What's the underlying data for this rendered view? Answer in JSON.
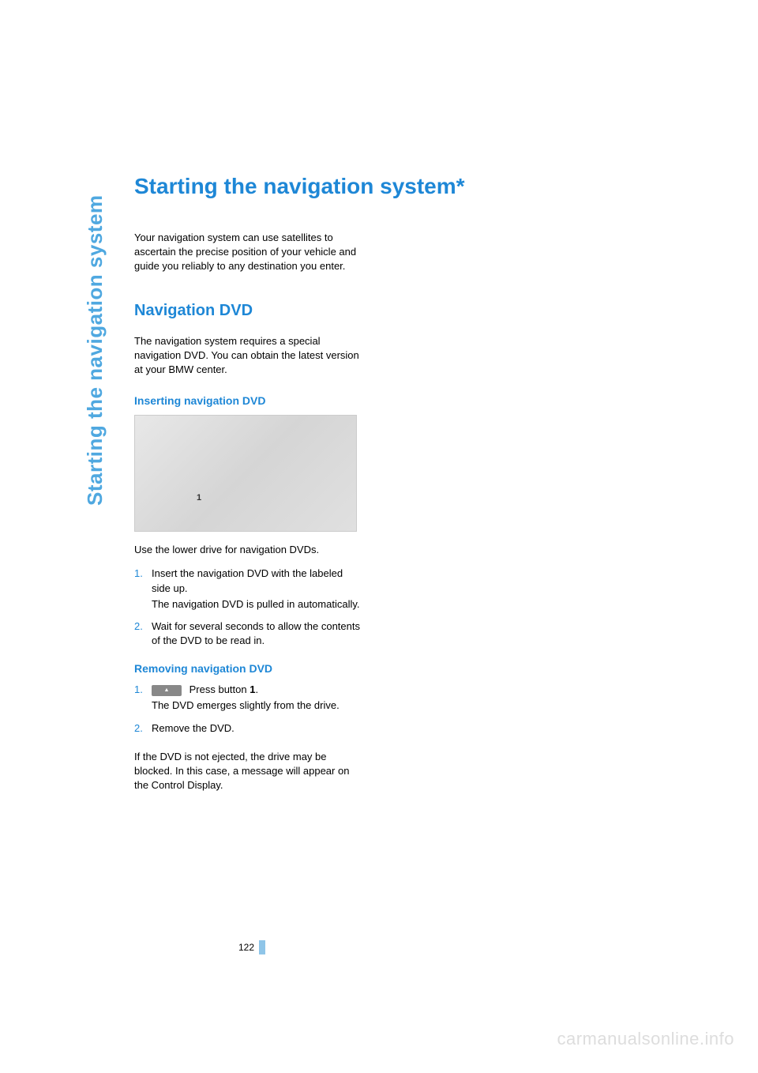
{
  "colors": {
    "heading_blue": "#1e87d6",
    "sidebar_blue": "#4fa8e0",
    "text_black": "#000000",
    "page_mark": "#8fc5e8",
    "watermark_gray": "#dddddd",
    "background": "#ffffff"
  },
  "typography": {
    "main_title_fontsize": 28,
    "section_heading_fontsize": 20,
    "subsection_heading_fontsize": 14,
    "body_fontsize": 13,
    "sidebar_fontsize": 26
  },
  "sidebar": {
    "title": "Starting the navigation system"
  },
  "main": {
    "title": "Starting the navigation system*",
    "intro": "Your navigation system can use satellites to ascertain the precise position of your vehicle and guide you reliably to any destination you enter."
  },
  "section_nav_dvd": {
    "heading": "Navigation DVD",
    "text": "The navigation system requires a special navigation DVD. You can obtain the latest version at your BMW center."
  },
  "subsection_insert": {
    "heading": "Inserting navigation DVD",
    "caption": "Use the lower drive for navigation DVDs.",
    "steps": [
      {
        "num": "1.",
        "text": "Insert the navigation DVD with the labeled side up.",
        "sub": "The navigation DVD is pulled in automatically."
      },
      {
        "num": "2.",
        "text": "Wait for several seconds to allow the contents of the DVD to be read in."
      }
    ]
  },
  "subsection_remove": {
    "heading": "Removing navigation DVD",
    "steps": [
      {
        "num": "1.",
        "button_label": "Press button ",
        "button_ref": "1",
        "button_after": ".",
        "sub": "The DVD emerges slightly from the drive."
      },
      {
        "num": "2.",
        "text": "Remove the DVD."
      }
    ],
    "closing": "If the DVD is not ejected, the drive may be blocked. In this case, a message will appear on the Control Display."
  },
  "footer": {
    "page_number": "122",
    "watermark": "carmanualsonline.info"
  }
}
